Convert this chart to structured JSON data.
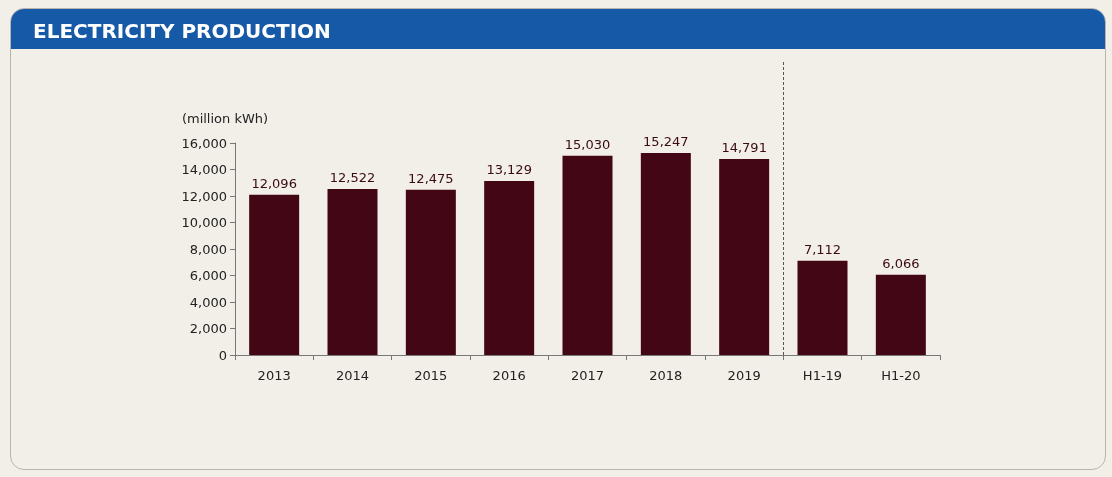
{
  "chart_data": {
    "type": "bar",
    "title": "ELECTRICITY PRODUCTION",
    "ylabel": "(million kWh)",
    "categories": [
      "2013",
      "2014",
      "2015",
      "2016",
      "2017",
      "2018",
      "2019",
      "H1-19",
      "H1-20"
    ],
    "values": [
      12096,
      12522,
      12475,
      13129,
      15030,
      15247,
      14791,
      7112,
      6066
    ],
    "value_labels": [
      "12,096",
      "12,522",
      "12,475",
      "13,129",
      "15,030",
      "15,247",
      "14,791",
      "7,112",
      "6,066"
    ],
    "color": "#430614",
    "ylim": [
      0,
      16000
    ],
    "yticks": [
      0,
      {
        "value": 2000,
        "label": "2,000"
      },
      {
        "value": 4000,
        "label": "4,000"
      },
      {
        "value": 6000,
        "label": "6,000"
      },
      {
        "value": 8000,
        "label": "8,000"
      },
      {
        "value": 10000,
        "label": "10,000"
      },
      {
        "value": 12000,
        "label": "12,000"
      },
      {
        "value": 14000,
        "label": "14,000"
      },
      {
        "value": 16000,
        "label": "16,000"
      }
    ]
  }
}
